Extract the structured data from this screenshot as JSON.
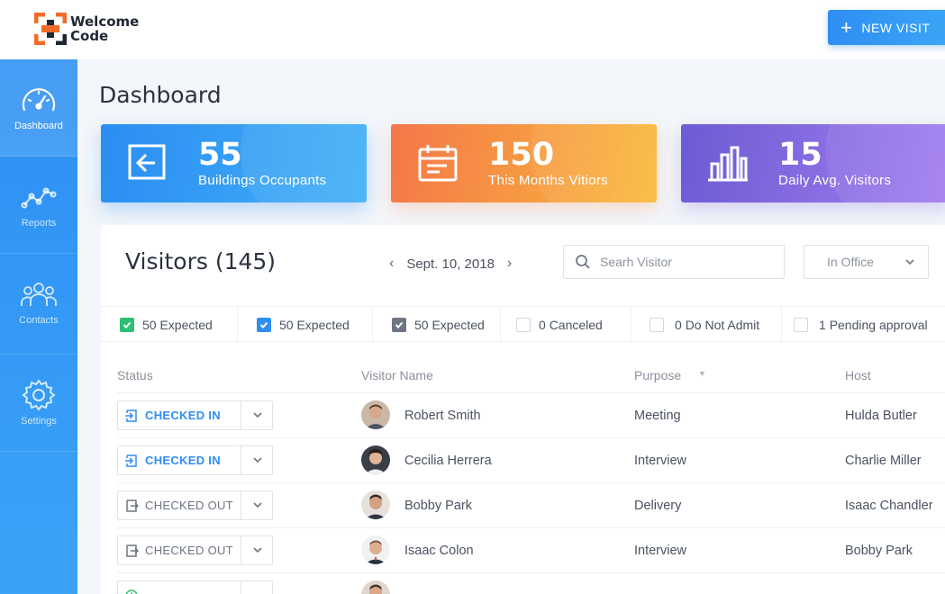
{
  "brand": {
    "line1": "Welcome",
    "line2": "Code"
  },
  "header": {
    "new_visit_label": "NEW VISIT"
  },
  "sidebar": {
    "items": [
      {
        "label": "Dashboard",
        "icon": "gauge-icon",
        "active": true
      },
      {
        "label": "Reports",
        "icon": "line-chart-icon",
        "active": false
      },
      {
        "label": "Contacts",
        "icon": "contacts-icon",
        "active": false
      },
      {
        "label": "Settings",
        "icon": "gear-icon",
        "active": false
      }
    ]
  },
  "page": {
    "title": "Dashboard"
  },
  "stats": [
    {
      "value": "55",
      "caption": "Buildings Occupants",
      "icon": "enter-icon",
      "color": "#2b8df2"
    },
    {
      "value": "150",
      "caption": "This Months Vitiors",
      "icon": "calendar-icon",
      "color": "#f4774a"
    },
    {
      "value": "15",
      "caption": "Daily Avg. Visitors",
      "icon": "bar-chart-icon",
      "color": "#6d5bd3"
    }
  ],
  "visitors": {
    "title": "Visitors (145)",
    "date": "Sept. 10, 2018",
    "search_placeholder": "Searh Visitor",
    "location_filter": "In Office",
    "filters": [
      {
        "count": "50",
        "label": "Expected",
        "check": "green"
      },
      {
        "count": "50",
        "label": "Expected",
        "check": "blue"
      },
      {
        "count": "50",
        "label": "Expected",
        "check": "gray"
      },
      {
        "count": "0",
        "label": "Canceled",
        "check": "empty"
      },
      {
        "count": "0",
        "label": "Do Not Admit",
        "check": "empty"
      },
      {
        "count": "1",
        "label": "Pending approval",
        "check": "empty"
      }
    ],
    "columns": {
      "status": "Status",
      "name": "Visitor Name",
      "purpose": "Purpose",
      "host": "Host"
    },
    "rows": [
      {
        "status": "CHECKED IN",
        "status_type": "in",
        "name": "Robert Smith",
        "purpose": "Meeting",
        "host": "Hulda Butler"
      },
      {
        "status": "CHECKED IN",
        "status_type": "in",
        "name": "Cecilia Herrera",
        "purpose": "Interview",
        "host": "Charlie Miller"
      },
      {
        "status": "CHECKED OUT",
        "status_type": "out",
        "name": "Bobby Park",
        "purpose": "Delivery",
        "host": "Isaac Chandler"
      },
      {
        "status": "CHECKED OUT",
        "status_type": "out",
        "name": "Isaac Colon",
        "purpose": "Interview",
        "host": "Bobby Park"
      }
    ]
  },
  "colors": {
    "primary": "#2f8ef3",
    "success": "#2fbf71",
    "orange": "#f4774a",
    "purple": "#6d5bd3"
  }
}
